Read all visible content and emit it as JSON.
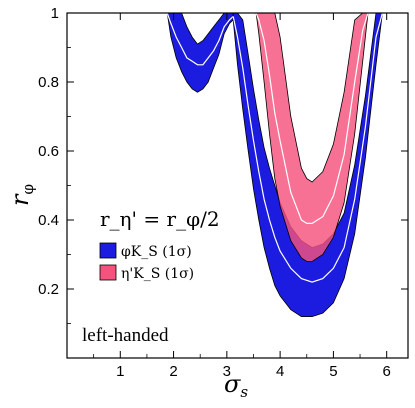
{
  "chart_data": {
    "type": "area",
    "title": "",
    "xlabel": "σ",
    "xlabel_sub": "s",
    "ylabel": "r",
    "ylabel_sub": "φ",
    "xlim": [
      0,
      6.4
    ],
    "ylim": [
      0,
      1
    ],
    "xticks": [
      1,
      2,
      3,
      4,
      5,
      6
    ],
    "yticks": [
      0.2,
      0.4,
      0.6,
      0.8,
      1
    ],
    "grid": false,
    "legend": {
      "position": "left-middle",
      "heading": "r_η' = r_φ/2",
      "entries": [
        {
          "label": "φK_S (1σ)",
          "color": "#1c1ce0"
        },
        {
          "label": "η'K_S (1σ)",
          "color": "#f5527d"
        }
      ]
    },
    "annotation": "left-handed",
    "series": [
      {
        "name": "φK_S (1σ)",
        "color": "#1c1ce0",
        "bands": [
          {
            "x": [
              1.88,
              1.95,
              2.05,
              2.15,
              2.25,
              2.35,
              2.45,
              2.55,
              2.65,
              2.75,
              2.85,
              2.95,
              3.05,
              3.12
            ],
            "lower": [
              1.0,
              0.93,
              0.87,
              0.83,
              0.8,
              0.78,
              0.77,
              0.78,
              0.8,
              0.84,
              0.88,
              0.94,
              0.97,
              0.98
            ],
            "upper": [
              1.0,
              1.0,
              1.0,
              1.0,
              0.96,
              0.93,
              0.91,
              0.92,
              0.94,
              0.96,
              0.98,
              1.0,
              1.0,
              1.0
            ],
            "center": [
              1.0,
              0.97,
              0.93,
              0.9,
              0.87,
              0.86,
              0.85,
              0.85,
              0.87,
              0.89,
              0.92,
              0.96,
              0.98,
              0.99
            ]
          },
          {
            "x": [
              3.12,
              3.2,
              3.3,
              3.4,
              3.5,
              3.6,
              3.7,
              3.8,
              3.9,
              4.0,
              4.2,
              4.4,
              4.6,
              4.8,
              5.0,
              5.2,
              5.4,
              5.6,
              5.8,
              5.92
            ],
            "lower": [
              0.98,
              0.85,
              0.72,
              0.6,
              0.49,
              0.4,
              0.32,
              0.26,
              0.21,
              0.18,
              0.14,
              0.12,
              0.12,
              0.13,
              0.16,
              0.23,
              0.36,
              0.58,
              0.85,
              1.0
            ],
            "upper": [
              1.0,
              1.0,
              0.98,
              0.88,
              0.78,
              0.69,
              0.61,
              0.55,
              0.5,
              0.45,
              0.38,
              0.34,
              0.32,
              0.33,
              0.36,
              0.42,
              0.56,
              0.76,
              1.0,
              1.0
            ],
            "center": [
              0.99,
              0.93,
              0.84,
              0.73,
              0.63,
              0.54,
              0.46,
              0.4,
              0.35,
              0.31,
              0.26,
              0.23,
              0.22,
              0.23,
              0.26,
              0.32,
              0.46,
              0.67,
              0.93,
              1.0
            ]
          }
        ]
      },
      {
        "name": "η'K_S (1σ)",
        "color": "#f5527d",
        "bands": [
          {
            "x": [
              3.55,
              3.6,
              3.7,
              3.8,
              3.9,
              4.0,
              4.2,
              4.4,
              4.5,
              4.6,
              4.8,
              5.0,
              5.2,
              5.4,
              5.55,
              5.65
            ],
            "lower": [
              1.0,
              0.94,
              0.8,
              0.65,
              0.52,
              0.44,
              0.34,
              0.29,
              0.28,
              0.28,
              0.3,
              0.35,
              0.45,
              0.65,
              0.86,
              1.0
            ],
            "upper": [
              1.0,
              1.0,
              1.0,
              1.0,
              1.0,
              0.93,
              0.7,
              0.55,
              0.52,
              0.51,
              0.54,
              0.62,
              0.77,
              0.98,
              1.0,
              1.0
            ],
            "center": [
              1.0,
              0.98,
              0.92,
              0.82,
              0.71,
              0.63,
              0.48,
              0.4,
              0.39,
              0.39,
              0.41,
              0.47,
              0.59,
              0.8,
              0.95,
              1.0
            ]
          }
        ]
      }
    ]
  }
}
